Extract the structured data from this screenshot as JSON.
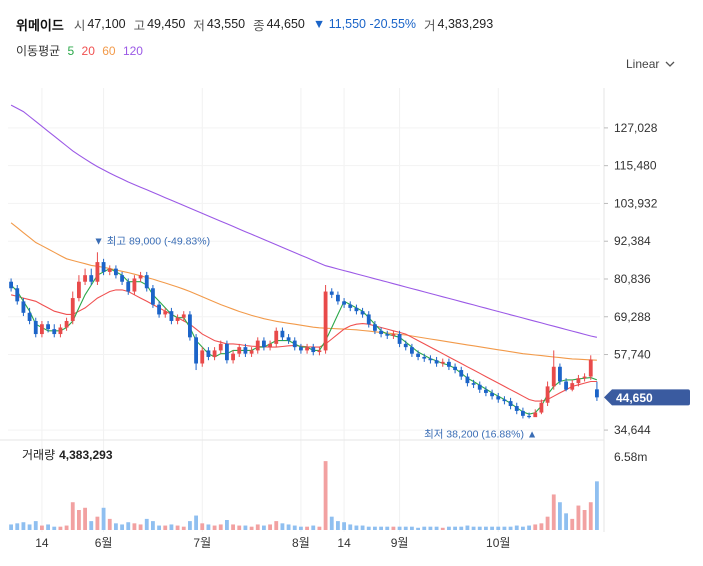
{
  "stock": {
    "name": "위메이드",
    "open_label": "시",
    "open": "47,100",
    "high_label": "고",
    "high": "49,450",
    "low_label": "저",
    "low": "43,550",
    "close_label": "종",
    "close": "44,650",
    "change": "▼ 11,550 -20.55%",
    "volume_label": "거",
    "volume": "4,383,293"
  },
  "ma_legend": {
    "title": "이동평균",
    "periods": [
      {
        "label": "5",
        "color": "#2ba84a"
      },
      {
        "label": "20",
        "color": "#f05050"
      },
      {
        "label": "60",
        "color": "#f29a4a"
      },
      {
        "label": "120",
        "color": "#9b59e6"
      }
    ]
  },
  "scale_selector": {
    "label": "Linear",
    "icon": "chevron-down-icon"
  },
  "volume_panel": {
    "label": "거래량",
    "value": "4,383,293",
    "tick": "6.58m"
  },
  "chart_data": {
    "type": "candlestick",
    "y_ticks": [
      "127,028",
      "115,480",
      "103,932",
      "92,384",
      "80,836",
      "69,288",
      "57,740",
      "34,644"
    ],
    "y_tick_values": [
      127028,
      115480,
      103932,
      92384,
      80836,
      69288,
      57740,
      34644
    ],
    "ylim": [
      31000,
      138000
    ],
    "x_tick_labels": [
      "14",
      "6월",
      "7월",
      "8월",
      "14",
      "9월",
      "10월"
    ],
    "x_tick_index": [
      5,
      15,
      31,
      47,
      54,
      63,
      79
    ],
    "current_price": {
      "value": 44650,
      "label": "44,650"
    },
    "max_annotation": {
      "value": 89000,
      "text": "▼ 최고 89,000 (-49.83%)",
      "index": 14
    },
    "min_annotation": {
      "value": 38200,
      "text": "최저 38,200 (16.88%) ▲",
      "index": 85
    },
    "up_color": "#e84a4a",
    "down_color": "#1c64c8",
    "close": [
      78000,
      74000,
      70500,
      68000,
      64000,
      67000,
      65500,
      64000,
      66000,
      68000,
      75000,
      80000,
      82000,
      80000,
      86000,
      83000,
      84000,
      82000,
      80000,
      77000,
      81000,
      82000,
      78000,
      73000,
      70000,
      71000,
      68000,
      69000,
      70000,
      63000,
      55000,
      59000,
      57000,
      59000,
      61000,
      56000,
      58000,
      60000,
      58000,
      59000,
      62000,
      60000,
      61000,
      65000,
      63000,
      62000,
      60000,
      59000,
      60000,
      58500,
      59000,
      77000,
      76000,
      74000,
      73000,
      72000,
      71000,
      70000,
      67000,
      65000,
      64000,
      63500,
      64000,
      61000,
      60000,
      58000,
      57000,
      56500,
      56000,
      55000,
      55500,
      54000,
      53000,
      51000,
      49000,
      48500,
      47000,
      46000,
      45000,
      44000,
      43500,
      42000,
      40500,
      39000,
      38600,
      40000,
      43000,
      48000,
      54000,
      49500,
      47000,
      49000,
      50500,
      51000,
      56200,
      44650
    ],
    "open": [
      80000,
      78000,
      74000,
      70500,
      68000,
      64000,
      67000,
      65500,
      64000,
      66000,
      68000,
      75000,
      80000,
      82000,
      80000,
      86000,
      83000,
      84000,
      82000,
      80000,
      77000,
      81000,
      82000,
      78000,
      73000,
      70000,
      71000,
      68000,
      69000,
      70000,
      63000,
      55000,
      59000,
      57000,
      59000,
      61000,
      56000,
      58000,
      60000,
      58000,
      59000,
      62000,
      60000,
      61000,
      65000,
      63000,
      62000,
      60000,
      59000,
      60000,
      58500,
      59000,
      77000,
      76000,
      74000,
      73000,
      72000,
      71000,
      70000,
      67000,
      65000,
      64000,
      63500,
      64000,
      61000,
      60000,
      58000,
      57000,
      56500,
      56000,
      55000,
      55500,
      54000,
      53000,
      51000,
      49000,
      48500,
      47000,
      46000,
      45000,
      44000,
      43500,
      42000,
      40500,
      39000,
      38600,
      40000,
      43000,
      48000,
      54000,
      49500,
      47000,
      49000,
      50500,
      51000,
      47100
    ],
    "high": [
      81000,
      79000,
      75000,
      72000,
      69000,
      68000,
      68000,
      67000,
      67000,
      69000,
      77000,
      82000,
      84000,
      84000,
      89000,
      87000,
      85000,
      85000,
      83000,
      81000,
      82000,
      83000,
      83000,
      79000,
      74000,
      72000,
      72000,
      70000,
      71000,
      71000,
      64000,
      60000,
      60000,
      60000,
      62000,
      62000,
      59000,
      61000,
      61000,
      60000,
      63000,
      63000,
      62000,
      66000,
      66000,
      64000,
      63000,
      61000,
      61000,
      61000,
      60000,
      79000,
      78000,
      77000,
      75000,
      74000,
      73000,
      72000,
      71000,
      68000,
      66000,
      65000,
      65000,
      65000,
      62000,
      61000,
      59000,
      58000,
      57500,
      57000,
      56500,
      56500,
      55000,
      54000,
      52000,
      50000,
      49500,
      48000,
      47000,
      46000,
      45000,
      44500,
      43000,
      41500,
      40000,
      41000,
      44000,
      49500,
      59000,
      55000,
      50500,
      50000,
      51500,
      52000,
      57500,
      49450
    ],
    "low": [
      77000,
      73000,
      69500,
      67000,
      63000,
      63000,
      64500,
      63000,
      63000,
      65000,
      67000,
      74000,
      79000,
      79000,
      79000,
      82000,
      82000,
      81000,
      79000,
      76000,
      76000,
      80000,
      77000,
      72000,
      69000,
      69000,
      67000,
      67000,
      68000,
      62000,
      53000,
      54000,
      56000,
      56000,
      58000,
      55000,
      55000,
      57000,
      57000,
      57000,
      58000,
      59000,
      59000,
      60000,
      62000,
      61000,
      59000,
      58000,
      58000,
      57500,
      57500,
      58000,
      75000,
      73000,
      72000,
      71000,
      70000,
      69000,
      66000,
      64000,
      63000,
      62500,
      62500,
      60000,
      59000,
      57000,
      56000,
      55500,
      55000,
      54000,
      54000,
      53000,
      52000,
      50000,
      48000,
      47500,
      46000,
      45000,
      44000,
      43000,
      42500,
      41000,
      39500,
      38200,
      38200,
      38800,
      39500,
      42000,
      47000,
      48500,
      46500,
      46500,
      48000,
      49500,
      50000,
      43550
    ],
    "volume": [
      0.5,
      0.6,
      0.7,
      0.5,
      0.8,
      0.4,
      0.5,
      0.3,
      0.3,
      0.4,
      2.5,
      1.8,
      2.0,
      0.8,
      1.2,
      2.0,
      1.0,
      0.6,
      0.5,
      0.7,
      0.6,
      0.5,
      1.0,
      0.8,
      0.4,
      0.4,
      0.5,
      0.4,
      0.3,
      0.8,
      1.3,
      0.6,
      0.5,
      0.4,
      0.5,
      0.9,
      0.5,
      0.4,
      0.4,
      0.3,
      0.5,
      0.4,
      0.5,
      0.8,
      0.6,
      0.5,
      0.4,
      0.3,
      0.3,
      0.4,
      0.3,
      6.2,
      1.2,
      0.8,
      0.7,
      0.5,
      0.4,
      0.4,
      0.3,
      0.3,
      0.3,
      0.3,
      0.3,
      0.3,
      0.3,
      0.3,
      0.2,
      0.3,
      0.3,
      0.3,
      0.2,
      0.3,
      0.3,
      0.3,
      0.4,
      0.3,
      0.3,
      0.3,
      0.3,
      0.3,
      0.3,
      0.3,
      0.4,
      0.3,
      0.4,
      0.5,
      0.6,
      1.2,
      3.2,
      2.5,
      1.5,
      1.0,
      2.2,
      1.8,
      2.5,
      4.38
    ],
    "ma5": [
      79000,
      77000,
      74000,
      71000,
      67000,
      66000,
      65000,
      65000,
      65000,
      66000,
      68000,
      72000,
      76000,
      79000,
      82000,
      83000,
      84000,
      83000,
      82000,
      80000,
      80000,
      80000,
      79000,
      76000,
      74000,
      72000,
      70000,
      69000,
      69000,
      66000,
      62000,
      60000,
      58000,
      57000,
      58000,
      58000,
      59000,
      59000,
      59000,
      59000,
      60000,
      60000,
      61000,
      62000,
      62000,
      62000,
      61000,
      60000,
      60000,
      59000,
      59000,
      62000,
      66000,
      70000,
      74000,
      73000,
      72000,
      71000,
      69000,
      67000,
      65000,
      64000,
      63500,
      63000,
      61500,
      60000,
      58500,
      57500,
      56500,
      55800,
      55000,
      54500,
      53500,
      52000,
      50500,
      49500,
      48300,
      47200,
      46000,
      45000,
      44000,
      42800,
      41500,
      40200,
      39500,
      40000,
      42000,
      45500,
      48000,
      49500,
      50000,
      50000,
      50300,
      50500,
      50700,
      50000
    ],
    "ma20": [
      76000,
      75500,
      75000,
      74500,
      74000,
      73000,
      72000,
      71000,
      70500,
      70000,
      70000,
      71000,
      72000,
      73500,
      75000,
      76000,
      77000,
      77500,
      77500,
      77000,
      76000,
      75000,
      74000,
      73000,
      72000,
      71000,
      70000,
      69000,
      68000,
      67000,
      65500,
      64000,
      63000,
      62000,
      61500,
      61000,
      61000,
      60800,
      60500,
      60300,
      60200,
      60100,
      60000,
      60000,
      60200,
      60400,
      60500,
      60300,
      60100,
      60000,
      60000,
      61000,
      62500,
      64000,
      65500,
      66500,
      67000,
      67200,
      67000,
      66500,
      66000,
      65500,
      65000,
      64500,
      64000,
      63000,
      62000,
      61000,
      60000,
      59000,
      58000,
      57000,
      56000,
      55000,
      54000,
      53000,
      52000,
      51000,
      50000,
      49000,
      48000,
      47000,
      46000,
      45000,
      44000,
      43500,
      43500,
      44000,
      45000,
      46000,
      47000,
      48000,
      48500,
      49000,
      49500,
      49500
    ],
    "ma60": [
      98000,
      96500,
      95000,
      93500,
      92000,
      91000,
      90000,
      89000,
      88000,
      87000,
      86500,
      86000,
      85500,
      85000,
      84700,
      84400,
      84000,
      83600,
      83200,
      82800,
      82300,
      81800,
      81300,
      80800,
      80200,
      79600,
      79000,
      78400,
      77700,
      77000,
      76200,
      75400,
      74600,
      73800,
      73000,
      72300,
      71600,
      70900,
      70300,
      69700,
      69200,
      68700,
      68300,
      67900,
      67600,
      67300,
      67000,
      66700,
      66400,
      66100,
      65900,
      65800,
      65700,
      65600,
      65500,
      65400,
      65300,
      65100,
      64900,
      64700,
      64500,
      64300,
      64100,
      63900,
      63700,
      63400,
      63100,
      62800,
      62500,
      62200,
      61900,
      61600,
      61300,
      61000,
      60700,
      60400,
      60100,
      59800,
      59500,
      59200,
      58900,
      58600,
      58300,
      58000,
      57800,
      57600,
      57400,
      57200,
      57000,
      56800,
      56600,
      56400,
      56300,
      56200,
      56100,
      56000
    ],
    "ma120": [
      134000,
      133000,
      132000,
      130500,
      129000,
      127500,
      126000,
      124500,
      123000,
      121500,
      120000,
      118700,
      117500,
      116300,
      115200,
      114200,
      113200,
      112300,
      111400,
      110500,
      109700,
      108900,
      108100,
      107300,
      106500,
      105700,
      104900,
      104100,
      103300,
      102500,
      101700,
      100900,
      100100,
      99300,
      98500,
      97700,
      96900,
      96100,
      95300,
      94500,
      93700,
      92900,
      92100,
      91300,
      90500,
      89700,
      88900,
      88100,
      87300,
      86500,
      85700,
      84900,
      84400,
      83900,
      83400,
      82900,
      82400,
      81900,
      81400,
      80900,
      80400,
      79900,
      79400,
      78900,
      78400,
      77900,
      77400,
      76900,
      76400,
      75900,
      75400,
      74900,
      74400,
      73900,
      73400,
      72900,
      72400,
      71900,
      71400,
      70900,
      70400,
      69900,
      69400,
      68900,
      68400,
      67900,
      67400,
      66900,
      66400,
      65900,
      65400,
      64900,
      64400,
      63900,
      63400,
      63000
    ]
  }
}
